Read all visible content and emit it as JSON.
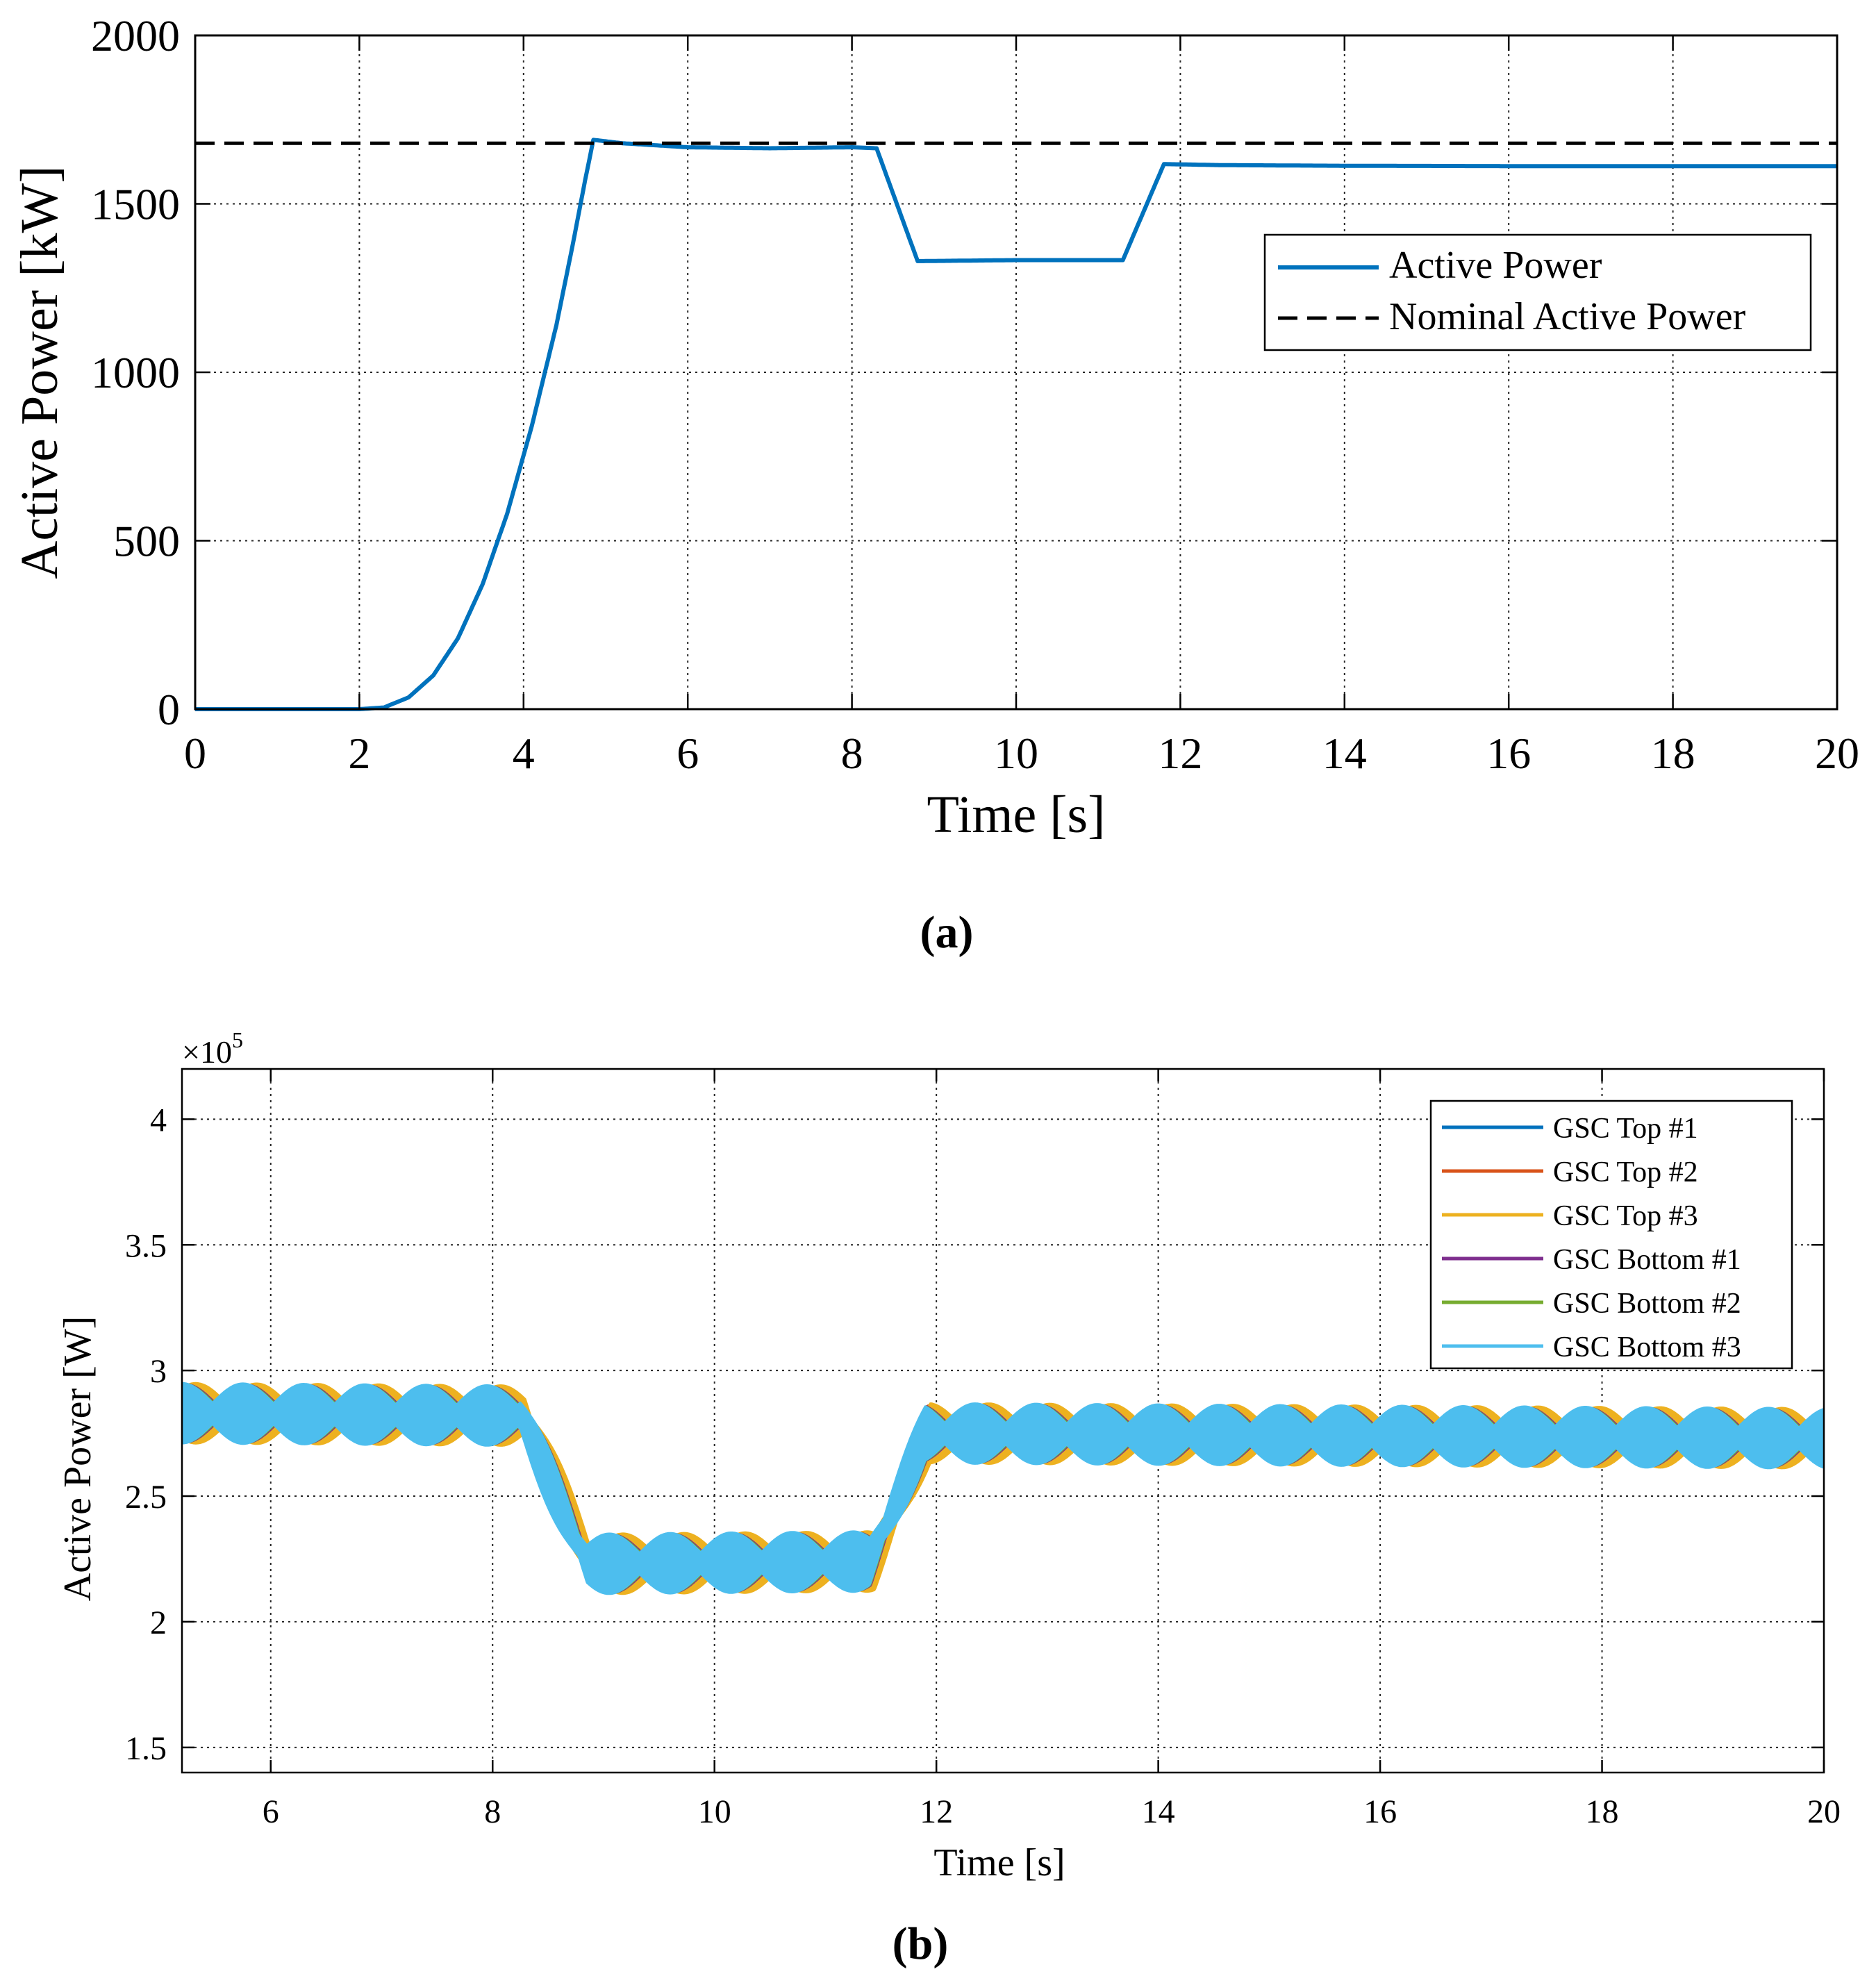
{
  "chart_data": [
    {
      "type": "line",
      "panel_label": "(a)",
      "title": "",
      "xlabel": "Time [s]",
      "ylabel": "Active Power [kW]",
      "xlim": [
        0,
        20
      ],
      "ylim": [
        0,
        2000
      ],
      "xticks": [
        0,
        2,
        4,
        6,
        8,
        10,
        12,
        14,
        16,
        18,
        20
      ],
      "yticks": [
        0,
        500,
        1000,
        1500,
        2000
      ],
      "grid": true,
      "legend_position": "right",
      "series": [
        {
          "name": "Active Power",
          "color": "#0072BD",
          "style": "solid",
          "x": [
            0,
            2.0,
            2.3,
            2.6,
            2.9,
            3.2,
            3.5,
            3.8,
            4.1,
            4.4,
            4.6,
            4.75,
            4.85,
            5.2,
            6.0,
            7.0,
            8.0,
            8.3,
            8.8,
            10.0,
            11.3,
            11.8,
            12.5,
            14.0,
            16.0,
            18.0,
            20.0
          ],
          "values": [
            0,
            0,
            5,
            35,
            100,
            210,
            370,
            580,
            840,
            1140,
            1380,
            1570,
            1690,
            1680,
            1668,
            1665,
            1668,
            1665,
            1330,
            1333,
            1333,
            1618,
            1615,
            1613,
            1612,
            1612,
            1612
          ]
        },
        {
          "name": "Nominal Active Power",
          "color": "#000000",
          "style": "dashed",
          "x": [
            0,
            20
          ],
          "values": [
            1680,
            1680
          ]
        }
      ]
    },
    {
      "type": "line",
      "panel_label": "(b)",
      "title": "",
      "xlabel": "Time [s]",
      "ylabel": "Active Power [W]",
      "exponent_label": "×10",
      "exponent_power": "5",
      "xlim": [
        5.2,
        20
      ],
      "ylim": [
        1.4,
        4.2
      ],
      "xticks": [
        6,
        8,
        10,
        12,
        14,
        16,
        18,
        20
      ],
      "yticks": [
        1.5,
        2,
        2.5,
        3,
        3.5,
        4
      ],
      "ytick_labels": [
        "1.5",
        "2",
        "2.5",
        "3",
        "3.5",
        "4"
      ],
      "grid": true,
      "legend_position": "top-right",
      "envelope": {
        "x": [
          5.2,
          8.25,
          8.85,
          11.4,
          11.9,
          20.0
        ],
        "mean": [
          2.83,
          2.82,
          2.23,
          2.24,
          2.75,
          2.73
        ],
        "amplitude": 0.12,
        "beat_period_s": 0.55
      },
      "series": [
        {
          "name": "GSC Top #1",
          "color": "#0072BD"
        },
        {
          "name": "GSC Top #2",
          "color": "#D95319"
        },
        {
          "name": "GSC Top #3",
          "color": "#EDB120"
        },
        {
          "name": "GSC Bottom #1",
          "color": "#7E2F8E"
        },
        {
          "name": "GSC Bottom #2",
          "color": "#77AC30"
        },
        {
          "name": "GSC Bottom #3",
          "color": "#4DBEEE"
        }
      ]
    }
  ]
}
